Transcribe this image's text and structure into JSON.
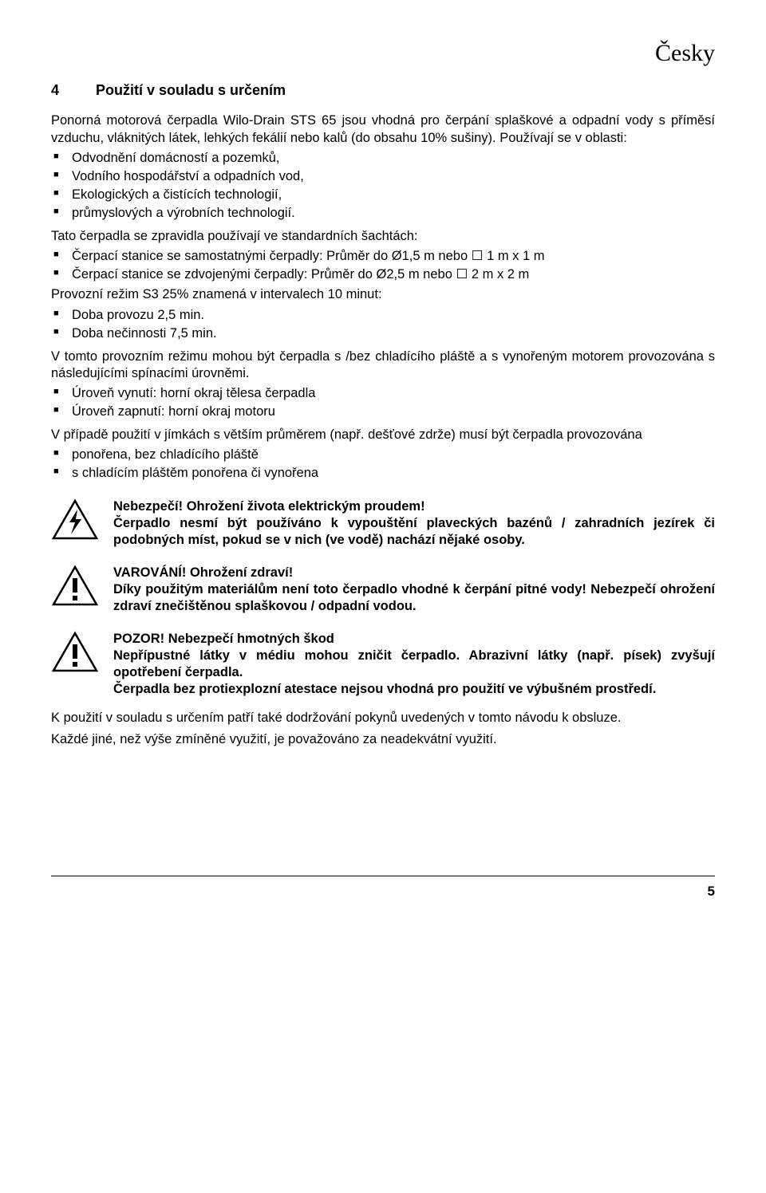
{
  "colors": {
    "text": "#000000",
    "background": "#ffffff",
    "iconStroke": "#000000",
    "iconFill": "#ffffff"
  },
  "typography": {
    "bodyFontFamily": "Verdana, Geneva, sans-serif",
    "bodyFontSize": 16.5,
    "headingFontSize": 18,
    "langHeaderFontSize": 30,
    "lineHeight": 1.28
  },
  "langHeader": "Česky",
  "section": {
    "number": "4",
    "title": "Použití v souladu s určením"
  },
  "intro": "Ponorná motorová čerpadla Wilo-Drain STS 65 jsou vhodná pro čerpání splaškové a odpadní vody s příměsí vzduchu, vláknitých látek, lehkých fekálií nebo kalů (do obsahu 10% sušiny). Používají se v oblasti:",
  "usageList": [
    "Odvodnění domácností a pozemků,",
    "Vodního hospodářství a odpadních vod,",
    "Ekologických a čistících technologií,",
    "průmyslových a výrobních technologií."
  ],
  "shaftsIntro": "Tato čerpadla se zpravidla používají ve standardních šachtách:",
  "shaftsList": [
    "Čerpací stanice se samostatnými čerpadly: Průměr do Ø1,5 m nebo ☐ 1 m x 1 m",
    "Čerpací stanice se zdvojenými čerpadly: Průměr do Ø2,5 m nebo ☐ 2 m x 2 m"
  ],
  "s3Intro": "Provozní režim S3 25% znamená v intervalech 10 minut:",
  "s3List": [
    "Doba provozu 2,5 min.",
    "Doba nečinnosti 7,5 min."
  ],
  "modeText": "V tomto provozním režimu mohou být čerpadla s /bez chladícího pláště a s vynořeným motorem provozována s následujícími spínacími úrovněmi.",
  "levelsList": [
    "Úroveň vynutí:  horní okraj tělesa čerpadla",
    "Úroveň zapnutí: horní okraj motoru"
  ],
  "pitText": "V případě použití v jímkách s větším průměrem (např. dešťové zdrže) musí být čerpadla provozována",
  "pitList": [
    "ponořena, bez chladícího pláště",
    "s chladícím pláštěm ponořena či vynořena"
  ],
  "warnings": [
    {
      "iconType": "lightning",
      "title": "Nebezpečí! Ohrožení života elektrickým proudem!",
      "body": "Čerpadlo nesmí být používáno k vypouštění plaveckých bazénů / zahradních jezírek či podobných míst, pokud se v nich (ve vodě) nachází nějaké osoby."
    },
    {
      "iconType": "exclamation",
      "title": "VAROVÁNÍ! Ohrožení zdraví!",
      "body": "Díky použitým materiálům není toto čerpadlo vhodné k čerpání pitné vody! Nebezpečí ohrožení zdraví znečištěnou splaškovou / odpadní vodou."
    },
    {
      "iconType": "exclamation",
      "title": "POZOR! Nebezpečí hmotných škod",
      "body": "Nepřípustné látky v médiu mohou zničit čerpadlo. Abrazivní látky (např. písek) zvyšují opotřebení čerpadla.\nČerpadla bez protiexplozní atestace nejsou vhodná pro použití ve výbušném prostředí."
    }
  ],
  "closing1": "K použití v souladu s určením patří také dodržování pokynů uvedených v tomto návodu k obsluze.",
  "closing2": "Každé jiné, než výše zmíněné využití, je považováno za neadekvátní využití.",
  "pageNumber": "5"
}
